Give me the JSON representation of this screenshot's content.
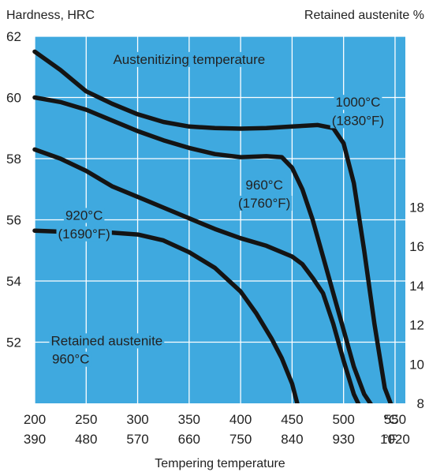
{
  "chart_data": {
    "type": "line",
    "title": "",
    "ylabel_left": "Hardness, HRC",
    "ylabel_right": "Retained austenite %",
    "xlabel": "Tempering temperature",
    "x_unit_primary": "°C",
    "x_unit_secondary": "°F",
    "xlim": [
      200,
      560
    ],
    "ylim_left": [
      50,
      62
    ],
    "ylim_right": [
      8,
      26.7
    ],
    "x_ticks": [
      {
        "c": 200,
        "c_label": "200",
        "f_label": "390"
      },
      {
        "c": 250,
        "c_label": "250",
        "f_label": "480"
      },
      {
        "c": 300,
        "c_label": "300",
        "f_label": "570"
      },
      {
        "c": 350,
        "c_label": "350",
        "f_label": "660"
      },
      {
        "c": 400,
        "c_label": "400",
        "f_label": "750"
      },
      {
        "c": 450,
        "c_label": "450",
        "f_label": "840"
      },
      {
        "c": 500,
        "c_label": "500",
        "f_label": "930"
      },
      {
        "c": 550,
        "c_label": "550",
        "f_label": "1020"
      }
    ],
    "y_ticks_left": [
      {
        "v": 62,
        "label": "62"
      },
      {
        "v": 60,
        "label": "60"
      },
      {
        "v": 58,
        "label": "58"
      },
      {
        "v": 56,
        "label": "56"
      },
      {
        "v": 54,
        "label": "54"
      },
      {
        "v": 52,
        "label": "52"
      }
    ],
    "y_ticks_right": [
      {
        "v": 18,
        "label": "18"
      },
      {
        "v": 16,
        "label": "16"
      },
      {
        "v": 14,
        "label": "14"
      },
      {
        "v": 12,
        "label": "12"
      },
      {
        "v": 10,
        "label": "10"
      },
      {
        "v": 8,
        "label": "8"
      }
    ],
    "grid": true,
    "annotations": [
      {
        "text": "Austenitizing temperature",
        "x": 350,
        "y": 61.1
      },
      {
        "text": "1000°C",
        "x": 514,
        "y": 59.7
      },
      {
        "text": "(1830°F)",
        "x": 514,
        "y": 59.1
      },
      {
        "text": "960°C",
        "x": 423,
        "y": 57.0
      },
      {
        "text": "(1760°F)",
        "x": 423,
        "y": 56.4
      },
      {
        "text": "920°C",
        "x": 248,
        "y": 56.0
      },
      {
        "text": "(1690°F)",
        "x": 248,
        "y": 55.4
      },
      {
        "text": "Retained austenite",
        "x": 270,
        "y": 51.9
      },
      {
        "text": "960°C",
        "x": 235,
        "y": 51.3
      }
    ],
    "series": [
      {
        "axis": "left",
        "x": [
          200,
          225,
          250,
          275,
          300,
          325,
          350,
          375,
          400,
          425,
          450,
          475,
          490,
          500,
          510,
          520,
          530,
          540,
          548
        ],
        "y": [
          61.5,
          60.9,
          60.2,
          59.8,
          59.45,
          59.2,
          59.05,
          59.0,
          58.98,
          59.0,
          59.05,
          59.1,
          59.0,
          58.5,
          57.2,
          55.0,
          52.6,
          50.5,
          49.8
        ]
      },
      {
        "axis": "left",
        "x": [
          200,
          225,
          250,
          275,
          300,
          325,
          350,
          375,
          400,
          425,
          440,
          450,
          460,
          470,
          480,
          490,
          500,
          510,
          520,
          530
        ],
        "y": [
          60.0,
          59.85,
          59.6,
          59.25,
          58.9,
          58.6,
          58.35,
          58.15,
          58.05,
          58.08,
          58.05,
          57.7,
          57.0,
          56.0,
          54.8,
          53.6,
          52.4,
          51.2,
          50.3,
          49.8
        ]
      },
      {
        "axis": "left",
        "x": [
          200,
          225,
          250,
          275,
          300,
          325,
          350,
          375,
          400,
          425,
          450,
          460,
          470,
          480,
          490,
          500,
          510,
          517
        ],
        "y": [
          58.3,
          58.0,
          57.6,
          57.1,
          56.75,
          56.4,
          56.05,
          55.7,
          55.4,
          55.15,
          54.8,
          54.55,
          54.1,
          53.6,
          52.6,
          51.4,
          50.3,
          49.8
        ]
      },
      {
        "axis": "right",
        "x": [
          200,
          250,
          275,
          300,
          325,
          350,
          375,
          400,
          415,
          430,
          440,
          450,
          455
        ],
        "y": [
          16.8,
          16.7,
          16.7,
          16.6,
          16.3,
          15.7,
          14.9,
          13.7,
          12.6,
          11.3,
          10.3,
          9.0,
          8.0
        ]
      }
    ]
  }
}
